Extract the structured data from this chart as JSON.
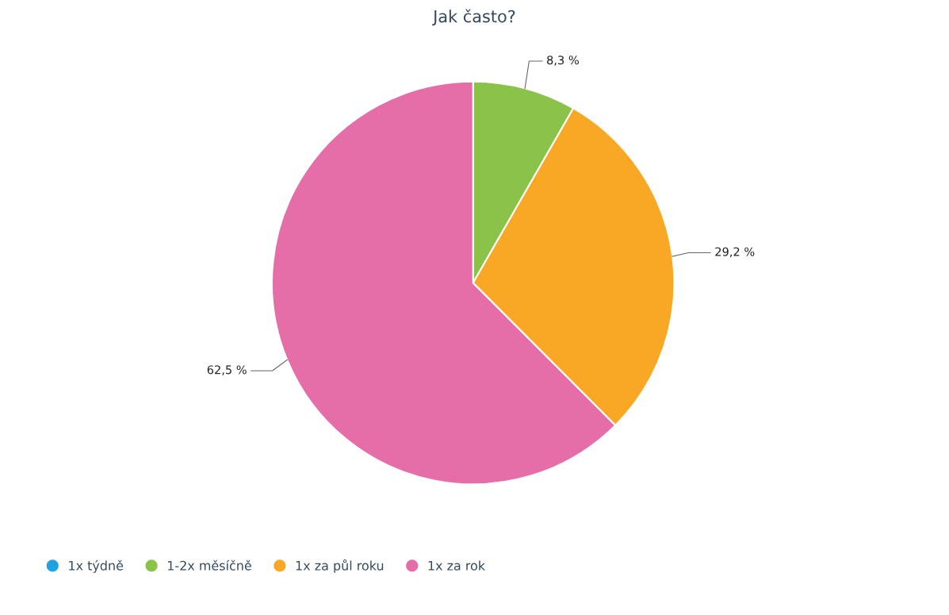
{
  "chart_data": {
    "type": "pie",
    "title": "Jak často?",
    "categories": [
      "1x týdně",
      "1-2x měsíčně",
      "1x za půl roku",
      "1x za rok"
    ],
    "values": [
      0,
      8.3,
      29.2,
      62.5
    ],
    "colors": [
      "#1ea3e0",
      "#8bc34a",
      "#f9a825",
      "#e56ea9"
    ],
    "value_labels": [
      null,
      "8,3 %",
      "29,2 %",
      "62,5 %"
    ],
    "legend": "bottom left"
  }
}
